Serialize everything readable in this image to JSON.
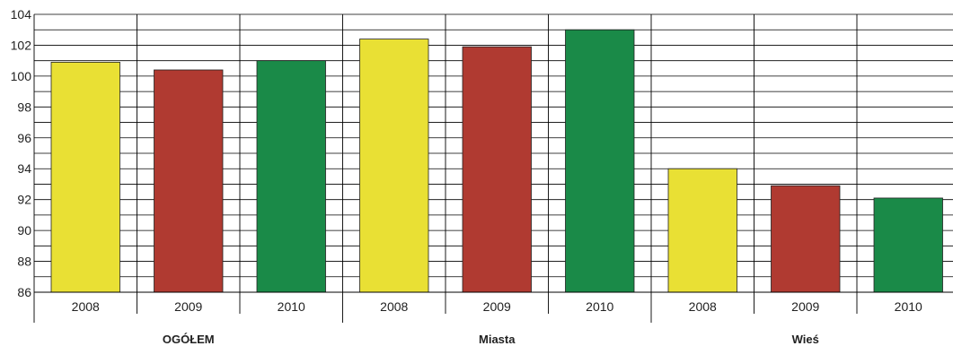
{
  "chart_data": {
    "type": "bar",
    "title": "",
    "xlabel": "",
    "ylabel": "",
    "ylim": [
      86,
      104
    ],
    "yticks": [
      86,
      88,
      90,
      92,
      94,
      96,
      98,
      100,
      102,
      104
    ],
    "minor_grid_step": 1,
    "grid": true,
    "groups": [
      {
        "name": "OGÓŁEM",
        "bars": [
          {
            "category": "2008",
            "value": 100.9,
            "color": "#e9e034"
          },
          {
            "category": "2009",
            "value": 100.4,
            "color": "#b03a31"
          },
          {
            "category": "2010",
            "value": 101.0,
            "color": "#1a8a48"
          }
        ]
      },
      {
        "name": "Miasta",
        "bars": [
          {
            "category": "2008",
            "value": 102.4,
            "color": "#e9e034"
          },
          {
            "category": "2009",
            "value": 101.9,
            "color": "#b03a31"
          },
          {
            "category": "2010",
            "value": 103.0,
            "color": "#1a8a48"
          }
        ]
      },
      {
        "name": "Wieś",
        "bars": [
          {
            "category": "2008",
            "value": 94.0,
            "color": "#e9e034"
          },
          {
            "category": "2009",
            "value": 92.9,
            "color": "#b03a31"
          },
          {
            "category": "2010",
            "value": 92.1,
            "color": "#1a8a48"
          }
        ]
      }
    ]
  }
}
